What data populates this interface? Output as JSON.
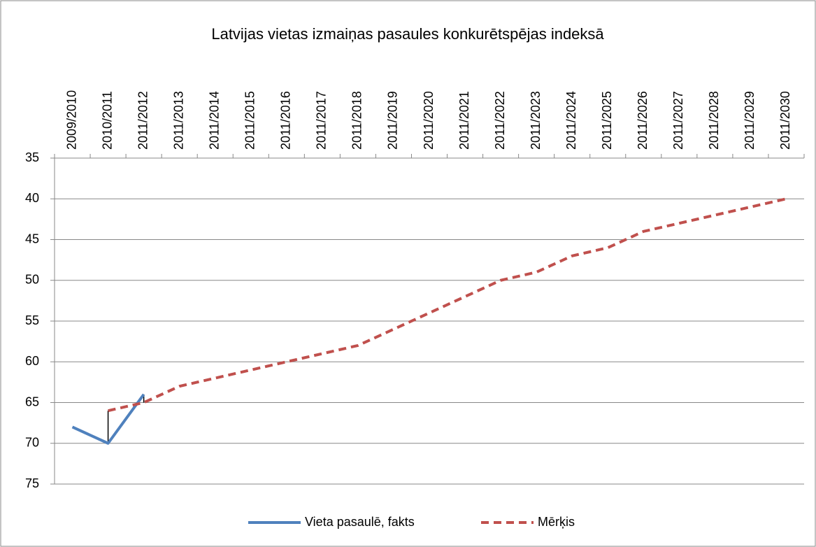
{
  "chart_data": {
    "type": "line",
    "title": "Latvijas vietas izmaiņas pasaules konkurētspējas indeksā",
    "categories": [
      "2009/2010",
      "2010/2011",
      "2011/2012",
      "2011/2013",
      "2011/2014",
      "2011/2015",
      "2011/2016",
      "2011/2017",
      "2011/2018",
      "2011/2019",
      "2011/2020",
      "2011/2021",
      "2011/2022",
      "2011/2023",
      "2011/2024",
      "2011/2025",
      "2011/2026",
      "2011/2027",
      "2011/2028",
      "2011/2029",
      "2011/2030"
    ],
    "series": [
      {
        "name": "Vieta pasaulē, fakts",
        "color": "#4f81bd",
        "dashed": false,
        "values": [
          68,
          70,
          64,
          null,
          null,
          null,
          null,
          null,
          null,
          null,
          null,
          null,
          null,
          null,
          null,
          null,
          null,
          null,
          null,
          null,
          null
        ]
      },
      {
        "name": "Mērķis",
        "color": "#c0504d",
        "dashed": true,
        "values": [
          null,
          66,
          65,
          63,
          62,
          61,
          60,
          59,
          58,
          56,
          54,
          52,
          50,
          49,
          47,
          46,
          44,
          43,
          42,
          41,
          40
        ]
      }
    ],
    "ylim": [
      35,
      75
    ],
    "yticks": [
      35,
      40,
      45,
      50,
      55,
      60,
      65,
      70,
      75
    ],
    "y_inverted": true,
    "grid": true,
    "legend": "bottom",
    "high_low_lines": true
  }
}
